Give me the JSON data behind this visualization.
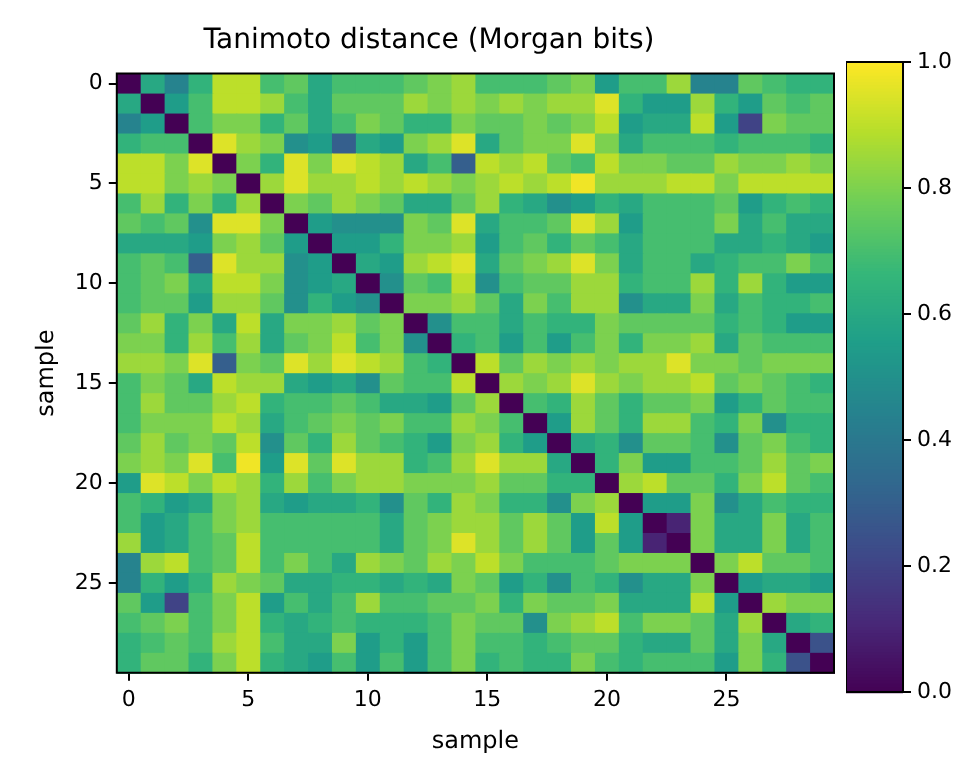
{
  "chart_data": {
    "type": "heatmap",
    "title": "Tanimoto distance (Morgan bits)",
    "xlabel": "sample",
    "ylabel": "sample",
    "categories": [
      "0",
      null,
      null,
      null,
      null,
      "5",
      null,
      null,
      null,
      null,
      "10",
      null,
      null,
      null,
      null,
      "15",
      null,
      null,
      null,
      null,
      "20",
      null,
      null,
      null,
      null,
      "25",
      null,
      null,
      null,
      null
    ],
    "y_categories": [
      "0",
      null,
      null,
      null,
      null,
      "5",
      null,
      null,
      null,
      null,
      "10",
      null,
      null,
      null,
      null,
      "15",
      null,
      null,
      null,
      null,
      "20",
      null,
      null,
      null,
      null,
      "25",
      null,
      null,
      null,
      null
    ],
    "clim": [
      0,
      1
    ],
    "cticks": [
      {
        "value": 0,
        "label": "0.0"
      },
      {
        "value": 0.2,
        "label": "0.2"
      },
      {
        "value": 0.4,
        "label": "0.4"
      },
      {
        "value": 0.6,
        "label": "0.6"
      },
      {
        "value": 0.8,
        "label": "0.8"
      },
      {
        "value": 1,
        "label": "1.0"
      }
    ],
    "cells": [
      [
        0,
        0.6,
        0.45,
        0.65,
        0.9,
        0.9,
        0.7,
        0.75,
        0.6,
        0.7,
        0.7,
        0.7,
        0.75,
        0.8,
        0.85,
        0.7,
        0.7,
        0.7,
        0.75,
        0.8,
        0.55,
        0.7,
        0.7,
        0.85,
        0.45,
        0.45,
        0.75,
        0.7,
        0.65,
        0.65
      ],
      [
        0.6,
        0,
        0.55,
        0.7,
        0.9,
        0.9,
        0.85,
        0.7,
        0.6,
        0.75,
        0.75,
        0.75,
        0.85,
        0.8,
        0.85,
        0.8,
        0.85,
        0.8,
        0.85,
        0.85,
        0.95,
        0.65,
        0.55,
        0.55,
        0.85,
        0.65,
        0.55,
        0.75,
        0.7,
        0.75
      ],
      [
        0.45,
        0.55,
        0,
        0.7,
        0.8,
        0.8,
        0.65,
        0.75,
        0.6,
        0.7,
        0.8,
        0.75,
        0.65,
        0.65,
        0.8,
        0.75,
        0.75,
        0.8,
        0.75,
        0.8,
        0.9,
        0.55,
        0.6,
        0.6,
        0.9,
        0.55,
        0.2,
        0.8,
        0.75,
        0.75
      ],
      [
        0.65,
        0.7,
        0.7,
        0,
        0.95,
        0.85,
        0.8,
        0.5,
        0.55,
        0.3,
        0.6,
        0.55,
        0.8,
        0.85,
        0.95,
        0.6,
        0.75,
        0.8,
        0.8,
        0.95,
        0.8,
        0.6,
        0.7,
        0.7,
        0.7,
        0.65,
        0.7,
        0.7,
        0.7,
        0.65
      ],
      [
        0.9,
        0.9,
        0.8,
        0.95,
        0,
        0.8,
        0.65,
        0.95,
        0.8,
        0.95,
        0.9,
        0.85,
        0.6,
        0.7,
        0.3,
        0.9,
        0.85,
        0.9,
        0.75,
        0.7,
        0.9,
        0.8,
        0.8,
        0.75,
        0.75,
        0.85,
        0.8,
        0.8,
        0.85,
        0.8
      ],
      [
        0.9,
        0.9,
        0.8,
        0.85,
        0.8,
        0,
        0.85,
        0.95,
        0.85,
        0.85,
        0.9,
        0.85,
        0.9,
        0.85,
        0.8,
        0.85,
        0.9,
        0.85,
        0.9,
        0.98,
        0.85,
        0.85,
        0.85,
        0.9,
        0.9,
        0.8,
        0.9,
        0.9,
        0.9,
        0.9
      ],
      [
        0.7,
        0.85,
        0.65,
        0.8,
        0.65,
        0.85,
        0,
        0.8,
        0.75,
        0.85,
        0.8,
        0.75,
        0.6,
        0.6,
        0.75,
        0.85,
        0.65,
        0.6,
        0.5,
        0.55,
        0.65,
        0.6,
        0.7,
        0.7,
        0.7,
        0.75,
        0.55,
        0.65,
        0.7,
        0.65
      ],
      [
        0.75,
        0.7,
        0.75,
        0.5,
        0.95,
        0.95,
        0.8,
        0,
        0.55,
        0.5,
        0.5,
        0.5,
        0.8,
        0.75,
        0.95,
        0.6,
        0.7,
        0.7,
        0.75,
        0.95,
        0.85,
        0.55,
        0.7,
        0.7,
        0.7,
        0.8,
        0.6,
        0.7,
        0.6,
        0.6
      ],
      [
        0.6,
        0.6,
        0.6,
        0.55,
        0.8,
        0.85,
        0.75,
        0.55,
        0,
        0.55,
        0.55,
        0.65,
        0.8,
        0.8,
        0.85,
        0.55,
        0.7,
        0.75,
        0.65,
        0.75,
        0.7,
        0.6,
        0.7,
        0.7,
        0.7,
        0.6,
        0.6,
        0.65,
        0.6,
        0.55
      ],
      [
        0.7,
        0.75,
        0.7,
        0.3,
        0.95,
        0.85,
        0.85,
        0.5,
        0.55,
        0,
        0.6,
        0.55,
        0.85,
        0.9,
        0.95,
        0.6,
        0.75,
        0.8,
        0.85,
        0.95,
        0.8,
        0.6,
        0.7,
        0.7,
        0.6,
        0.65,
        0.7,
        0.7,
        0.8,
        0.7
      ],
      [
        0.7,
        0.75,
        0.8,
        0.6,
        0.9,
        0.9,
        0.8,
        0.5,
        0.55,
        0.6,
        0,
        0.5,
        0.75,
        0.7,
        0.9,
        0.5,
        0.7,
        0.75,
        0.75,
        0.85,
        0.85,
        0.65,
        0.7,
        0.7,
        0.85,
        0.65,
        0.85,
        0.65,
        0.55,
        0.55
      ],
      [
        0.7,
        0.75,
        0.75,
        0.55,
        0.85,
        0.85,
        0.75,
        0.5,
        0.65,
        0.55,
        0.5,
        0,
        0.8,
        0.8,
        0.85,
        0.75,
        0.6,
        0.8,
        0.7,
        0.85,
        0.85,
        0.5,
        0.6,
        0.6,
        0.8,
        0.6,
        0.7,
        0.65,
        0.65,
        0.7
      ],
      [
        0.75,
        0.85,
        0.65,
        0.8,
        0.6,
        0.9,
        0.6,
        0.8,
        0.8,
        0.85,
        0.75,
        0.8,
        0,
        0.5,
        0.7,
        0.7,
        0.6,
        0.7,
        0.65,
        0.65,
        0.8,
        0.75,
        0.75,
        0.75,
        0.75,
        0.65,
        0.7,
        0.65,
        0.55,
        0.55
      ],
      [
        0.8,
        0.8,
        0.65,
        0.85,
        0.7,
        0.85,
        0.6,
        0.75,
        0.8,
        0.9,
        0.7,
        0.8,
        0.5,
        0,
        0.65,
        0.7,
        0.55,
        0.7,
        0.55,
        0.7,
        0.8,
        0.65,
        0.8,
        0.8,
        0.85,
        0.6,
        0.75,
        0.7,
        0.7,
        0.7
      ],
      [
        0.85,
        0.85,
        0.8,
        0.95,
        0.3,
        0.8,
        0.75,
        0.95,
        0.85,
        0.95,
        0.9,
        0.85,
        0.7,
        0.65,
        0,
        0.9,
        0.75,
        0.85,
        0.8,
        0.85,
        0.8,
        0.85,
        0.85,
        0.95,
        0.8,
        0.8,
        0.75,
        0.8,
        0.8,
        0.8
      ],
      [
        0.7,
        0.8,
        0.75,
        0.6,
        0.9,
        0.85,
        0.85,
        0.6,
        0.55,
        0.6,
        0.5,
        0.75,
        0.7,
        0.7,
        0.9,
        0,
        0.85,
        0.8,
        0.85,
        0.95,
        0.85,
        0.8,
        0.85,
        0.85,
        0.9,
        0.75,
        0.8,
        0.75,
        0.7,
        0.65
      ],
      [
        0.7,
        0.85,
        0.75,
        0.75,
        0.85,
        0.9,
        0.65,
        0.7,
        0.7,
        0.75,
        0.7,
        0.6,
        0.6,
        0.55,
        0.75,
        0.85,
        0,
        0.7,
        0.65,
        0.85,
        0.75,
        0.65,
        0.75,
        0.75,
        0.8,
        0.55,
        0.65,
        0.75,
        0.7,
        0.7
      ],
      [
        0.7,
        0.8,
        0.8,
        0.8,
        0.9,
        0.85,
        0.6,
        0.7,
        0.75,
        0.8,
        0.75,
        0.8,
        0.7,
        0.7,
        0.85,
        0.8,
        0.7,
        0,
        0.55,
        0.85,
        0.75,
        0.65,
        0.85,
        0.85,
        0.7,
        0.65,
        0.8,
        0.5,
        0.65,
        0.65
      ],
      [
        0.75,
        0.85,
        0.75,
        0.8,
        0.75,
        0.9,
        0.5,
        0.75,
        0.65,
        0.85,
        0.75,
        0.7,
        0.65,
        0.55,
        0.8,
        0.85,
        0.65,
        0.55,
        0,
        0.6,
        0.65,
        0.5,
        0.75,
        0.75,
        0.7,
        0.5,
        0.75,
        0.8,
        0.7,
        0.65
      ],
      [
        0.8,
        0.85,
        0.8,
        0.95,
        0.7,
        0.98,
        0.55,
        0.95,
        0.75,
        0.95,
        0.85,
        0.85,
        0.65,
        0.7,
        0.85,
        0.95,
        0.85,
        0.85,
        0.6,
        0,
        0.65,
        0.8,
        0.55,
        0.55,
        0.7,
        0.7,
        0.75,
        0.85,
        0.75,
        0.8
      ],
      [
        0.55,
        0.95,
        0.9,
        0.8,
        0.9,
        0.85,
        0.65,
        0.85,
        0.7,
        0.8,
        0.85,
        0.85,
        0.8,
        0.8,
        0.8,
        0.85,
        0.75,
        0.75,
        0.65,
        0.65,
        0,
        0.85,
        0.9,
        0.75,
        0.75,
        0.65,
        0.8,
        0.9,
        0.75,
        0.7
      ],
      [
        0.7,
        0.65,
        0.55,
        0.6,
        0.8,
        0.85,
        0.6,
        0.55,
        0.6,
        0.6,
        0.65,
        0.5,
        0.75,
        0.65,
        0.85,
        0.8,
        0.65,
        0.65,
        0.5,
        0.8,
        0.85,
        0,
        0.55,
        0.55,
        0.8,
        0.5,
        0.6,
        0.7,
        0.65,
        0.65
      ],
      [
        0.7,
        0.55,
        0.6,
        0.7,
        0.8,
        0.85,
        0.7,
        0.7,
        0.7,
        0.7,
        0.7,
        0.6,
        0.75,
        0.8,
        0.85,
        0.85,
        0.75,
        0.85,
        0.75,
        0.55,
        0.9,
        0.55,
        0,
        0.1,
        0.8,
        0.6,
        0.6,
        0.8,
        0.6,
        0.7
      ],
      [
        0.85,
        0.55,
        0.6,
        0.7,
        0.75,
        0.9,
        0.7,
        0.7,
        0.7,
        0.7,
        0.7,
        0.6,
        0.75,
        0.8,
        0.95,
        0.85,
        0.75,
        0.85,
        0.75,
        0.55,
        0.75,
        0.55,
        0.1,
        0,
        0.8,
        0.6,
        0.6,
        0.8,
        0.6,
        0.7
      ],
      [
        0.45,
        0.85,
        0.9,
        0.7,
        0.75,
        0.9,
        0.7,
        0.8,
        0.7,
        0.6,
        0.85,
        0.8,
        0.75,
        0.85,
        0.8,
        0.9,
        0.8,
        0.7,
        0.7,
        0.7,
        0.75,
        0.8,
        0.8,
        0.8,
        0,
        0.8,
        0.9,
        0.75,
        0.75,
        0.7
      ],
      [
        0.45,
        0.65,
        0.55,
        0.65,
        0.85,
        0.8,
        0.75,
        0.6,
        0.6,
        0.65,
        0.65,
        0.6,
        0.65,
        0.6,
        0.8,
        0.75,
        0.55,
        0.65,
        0.5,
        0.7,
        0.65,
        0.5,
        0.6,
        0.6,
        0.8,
        0,
        0.55,
        0.6,
        0.6,
        0.55
      ],
      [
        0.75,
        0.55,
        0.2,
        0.7,
        0.8,
        0.9,
        0.55,
        0.7,
        0.6,
        0.7,
        0.85,
        0.7,
        0.7,
        0.75,
        0.75,
        0.8,
        0.65,
        0.8,
        0.75,
        0.75,
        0.8,
        0.6,
        0.6,
        0.6,
        0.9,
        0.55,
        0,
        0.85,
        0.8,
        0.8
      ],
      [
        0.7,
        0.75,
        0.8,
        0.7,
        0.8,
        0.9,
        0.65,
        0.6,
        0.65,
        0.7,
        0.65,
        0.65,
        0.65,
        0.7,
        0.8,
        0.75,
        0.75,
        0.5,
        0.8,
        0.85,
        0.9,
        0.7,
        0.8,
        0.8,
        0.75,
        0.6,
        0.85,
        0,
        0.6,
        0.65
      ],
      [
        0.65,
        0.7,
        0.75,
        0.7,
        0.85,
        0.9,
        0.7,
        0.6,
        0.6,
        0.8,
        0.55,
        0.65,
        0.55,
        0.7,
        0.8,
        0.7,
        0.7,
        0.65,
        0.7,
        0.75,
        0.75,
        0.65,
        0.6,
        0.6,
        0.75,
        0.6,
        0.8,
        0.6,
        0,
        0.25
      ],
      [
        0.65,
        0.75,
        0.75,
        0.65,
        0.8,
        0.9,
        0.65,
        0.6,
        0.55,
        0.7,
        0.55,
        0.7,
        0.55,
        0.7,
        0.8,
        0.65,
        0.7,
        0.65,
        0.65,
        0.8,
        0.7,
        0.65,
        0.7,
        0.7,
        0.7,
        0.55,
        0.8,
        0.65,
        0.25,
        0
      ]
    ]
  }
}
